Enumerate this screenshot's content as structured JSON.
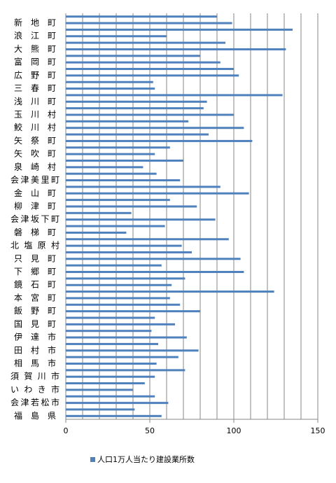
{
  "chart_data": {
    "type": "barh",
    "categories": [
      null,
      "新地町",
      null,
      "浪江町",
      null,
      "大熊町",
      null,
      "富岡町",
      null,
      "広野町",
      null,
      "三春町",
      null,
      "浅川町",
      null,
      "玉川村",
      null,
      "鮫川村",
      null,
      "矢祭町",
      null,
      "矢吹町",
      null,
      "泉崎村",
      null,
      "会津美里町",
      null,
      "金山町",
      null,
      "柳津町",
      null,
      "会津坂下町",
      null,
      "磐梯町",
      null,
      "北塩原村",
      null,
      "只見町",
      null,
      "下郷町",
      null,
      "鏡石町",
      null,
      "本宮町",
      null,
      "飯野町",
      null,
      "国見町",
      null,
      "伊達市",
      null,
      "田村市",
      null,
      "相馬市",
      null,
      "須賀川市",
      null,
      "いわき市",
      null,
      "会津若松市",
      null,
      "福島県"
    ],
    "series": [
      {
        "name": "人口1万人当たり建設業所数",
        "color": "#4f81bd",
        "values": [
          90,
          99,
          135,
          60,
          95,
          131,
          80,
          92,
          100,
          103,
          52,
          53,
          129,
          84,
          82,
          100,
          73,
          106,
          85,
          111,
          62,
          53,
          70,
          46,
          54,
          68,
          92,
          109,
          62,
          78,
          39,
          89,
          59,
          36,
          97,
          69,
          75,
          104,
          57,
          106,
          71,
          63,
          124,
          62,
          68,
          80,
          53,
          65,
          51,
          72,
          55,
          79,
          67,
          54,
          71,
          53,
          47,
          40,
          53,
          61,
          41,
          57
        ]
      }
    ],
    "xlim": [
      0,
      150
    ],
    "xticks": [
      0,
      50,
      100,
      150
    ],
    "grid": true,
    "grid_interval": 10,
    "legend": "bottom"
  }
}
